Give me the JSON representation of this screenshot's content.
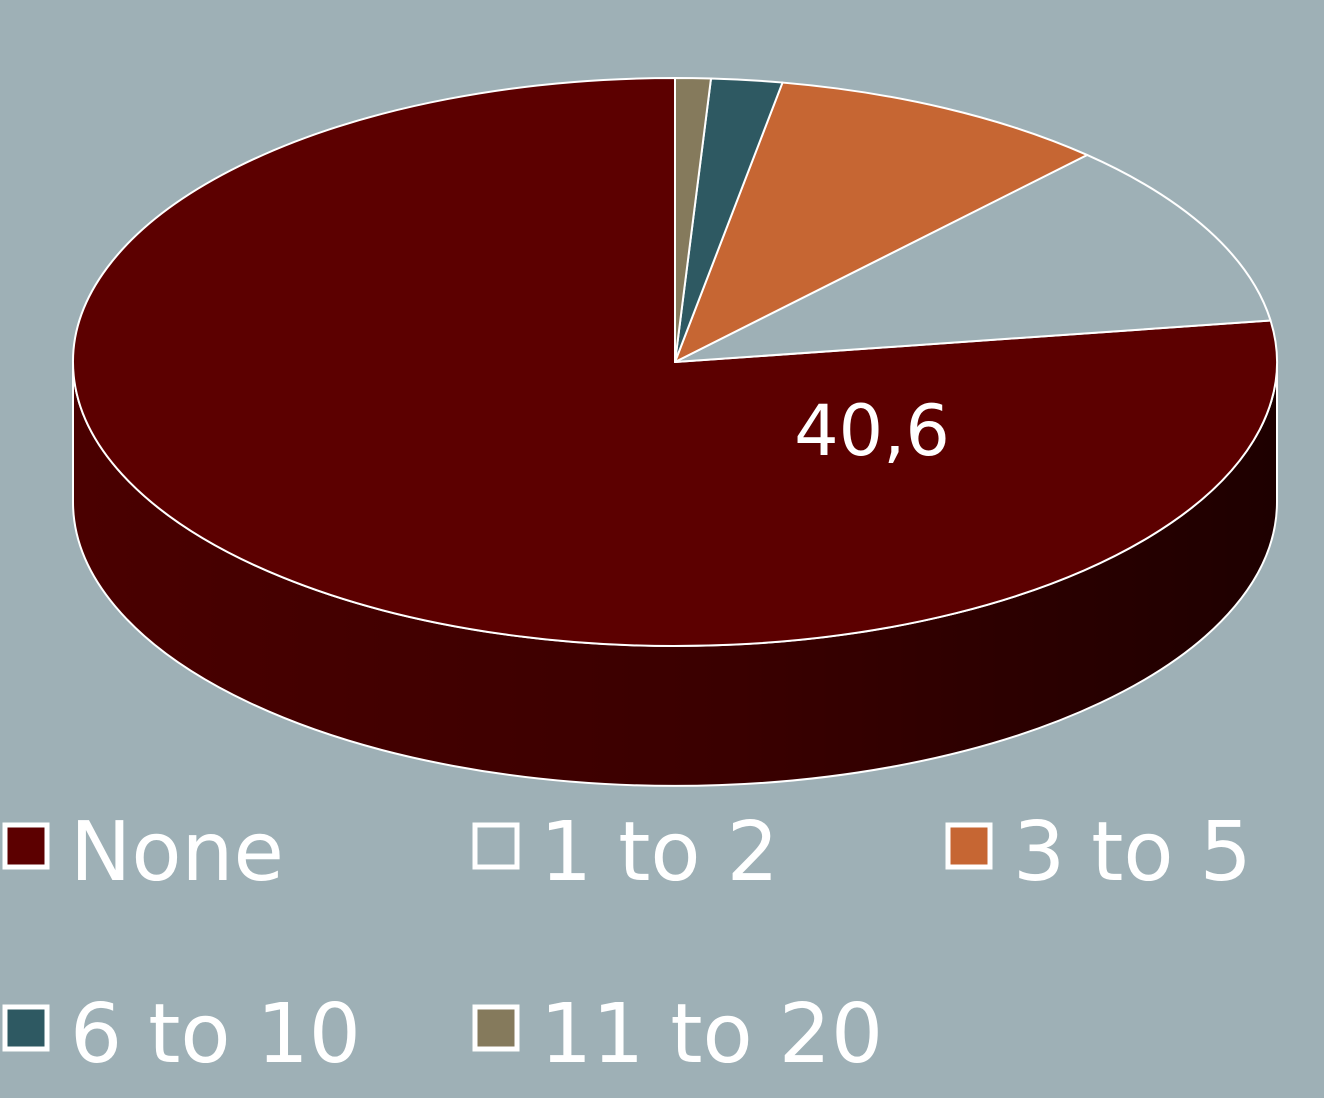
{
  "chart_data": {
    "type": "pie",
    "style": "3d",
    "categories": [
      "None",
      "1 to 2",
      "3 to 5",
      "6 to 10",
      "11 to 20"
    ],
    "values": [
      40.6,
      5.6,
      4.8,
      1.0,
      0.5
    ],
    "colors": [
      "#5c0000",
      "#9eb0b6",
      "#c66633",
      "#2e5962",
      "#857a5c"
    ],
    "side_color": "#3a0000",
    "data_labels": [
      {
        "category": "None",
        "text": "40,6"
      }
    ],
    "legend": {
      "position": "bottom",
      "entries": [
        "None",
        "1 to 2",
        "3 to 5",
        "6 to 10",
        "11 to 20"
      ]
    },
    "background": "#9eb0b6"
  }
}
